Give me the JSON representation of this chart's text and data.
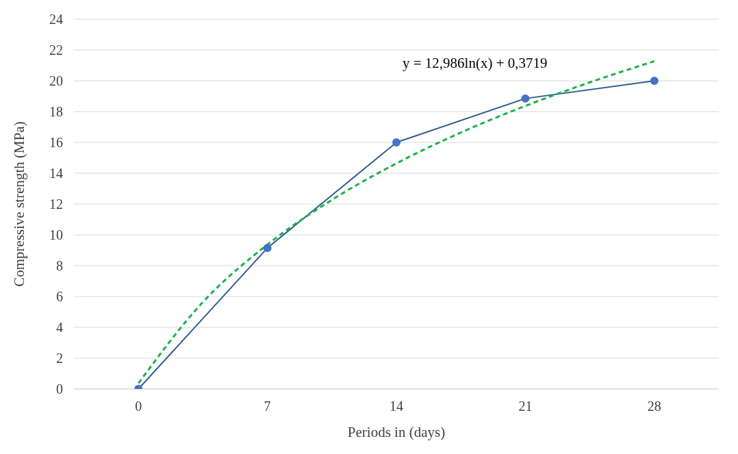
{
  "chart_data": {
    "type": "line",
    "xlabel": "Periods in (days)",
    "ylabel": "Compressive strength (MPa)",
    "x": [
      0,
      7,
      14,
      21,
      28
    ],
    "series": [
      {
        "color": "#2f5b8c",
        "values": [
          0,
          9.15,
          16.0,
          18.85,
          20.0
        ],
        "marker": "circle",
        "line_style": "solid"
      },
      {
        "type": "line",
        "color": "#1db14b",
        "x": [
          0,
          3.5,
          7,
          10.5,
          14,
          17.5,
          21,
          24.5,
          28
        ],
        "values": [
          0.37,
          5.64,
          9.37,
          12.27,
          14.64,
          16.64,
          18.37,
          19.9,
          21.27
        ],
        "marker": "none",
        "line_style": "dashed"
      }
    ],
    "annotations": [
      "y = 12,986ln(x) + 0,3719"
    ],
    "xlim": [
      -3.5,
      31.5
    ],
    "xticks": [
      0,
      7,
      14,
      21,
      28
    ],
    "ylim": [
      0,
      24
    ],
    "yticks": [
      0,
      2,
      4,
      6,
      8,
      10,
      12,
      14,
      16,
      18,
      20,
      22,
      24
    ],
    "grid": "y"
  }
}
